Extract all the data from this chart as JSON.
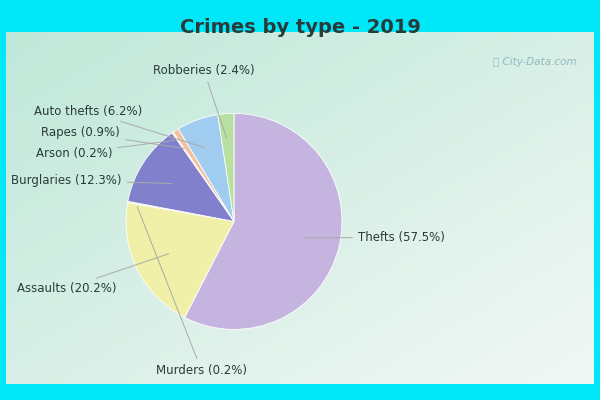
{
  "title": "Crimes by type - 2019",
  "slices": [
    {
      "label": "Thefts",
      "pct": 57.5,
      "color": "#c5b3e0"
    },
    {
      "label": "Assaults",
      "pct": 20.2,
      "color": "#f0f0a8"
    },
    {
      "label": "Murders",
      "pct": 0.2,
      "color": "#e8dfa0"
    },
    {
      "label": "Burglaries",
      "pct": 12.3,
      "color": "#8080cc"
    },
    {
      "label": "Arson",
      "pct": 0.2,
      "color": "#f5c8a0"
    },
    {
      "label": "Rapes",
      "pct": 0.9,
      "color": "#f4c0a0"
    },
    {
      "label": "Auto thefts",
      "pct": 6.2,
      "color": "#a0ccf0"
    },
    {
      "label": "Robberies",
      "pct": 2.4,
      "color": "#b8e0a0"
    }
  ],
  "bg_color_outer": "#00e8f8",
  "bg_color_inner_tl": "#c0e8d8",
  "bg_color_inner_center": "#e8f4ee",
  "bg_color_inner_br": "#e0eeea",
  "title_fontsize": 14,
  "label_fontsize": 8.5,
  "title_color": "#2a3a3a"
}
